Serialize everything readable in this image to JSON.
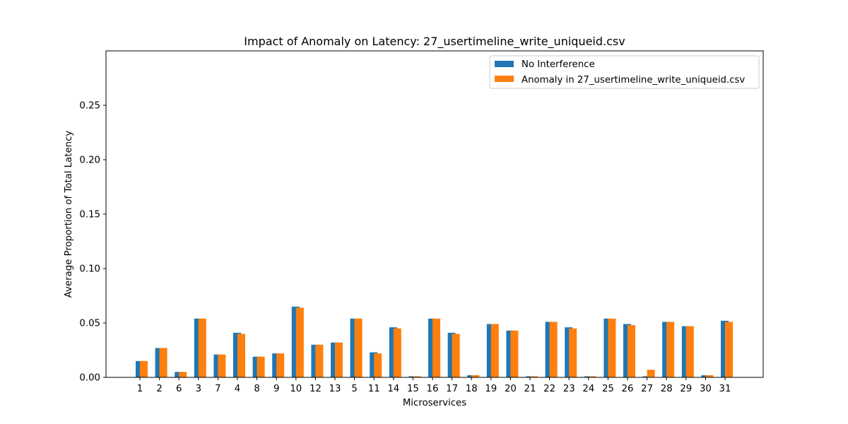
{
  "chart_data": {
    "type": "bar",
    "title": "Impact of Anomaly on Latency: 27_usertimeline_write_uniqueid.csv",
    "xlabel": "Microservices",
    "ylabel": "Average Proportion of Total Latency",
    "ylim": [
      0,
      0.3
    ],
    "yticks": [
      "0.00",
      "0.05",
      "0.10",
      "0.15",
      "0.20",
      "0.25"
    ],
    "grid": false,
    "legend_position": "top-right",
    "categories": [
      "1",
      "2",
      "6",
      "3",
      "7",
      "4",
      "8",
      "9",
      "10",
      "12",
      "13",
      "5",
      "11",
      "14",
      "15",
      "16",
      "17",
      "18",
      "19",
      "20",
      "21",
      "22",
      "23",
      "24",
      "25",
      "26",
      "27",
      "28",
      "29",
      "30",
      "31"
    ],
    "series": [
      {
        "name": "No Interference",
        "color": "#1f77b4",
        "values": [
          0.015,
          0.027,
          0.005,
          0.054,
          0.021,
          0.041,
          0.019,
          0.022,
          0.065,
          0.03,
          0.032,
          0.054,
          0.023,
          0.046,
          0.001,
          0.054,
          0.041,
          0.002,
          0.049,
          0.043,
          0.001,
          0.051,
          0.046,
          0.001,
          0.054,
          0.049,
          0.001,
          0.051,
          0.047,
          0.002,
          0.052
        ]
      },
      {
        "name": "Anomaly in 27_usertimeline_write_uniqueid.csv",
        "color": "#ff7f0e",
        "values": [
          0.015,
          0.027,
          0.005,
          0.054,
          0.021,
          0.04,
          0.019,
          0.022,
          0.064,
          0.03,
          0.032,
          0.054,
          0.022,
          0.045,
          0.001,
          0.054,
          0.04,
          0.002,
          0.049,
          0.043,
          0.001,
          0.051,
          0.045,
          0.001,
          0.054,
          0.048,
          0.007,
          0.051,
          0.047,
          0.002,
          0.051
        ]
      }
    ]
  }
}
